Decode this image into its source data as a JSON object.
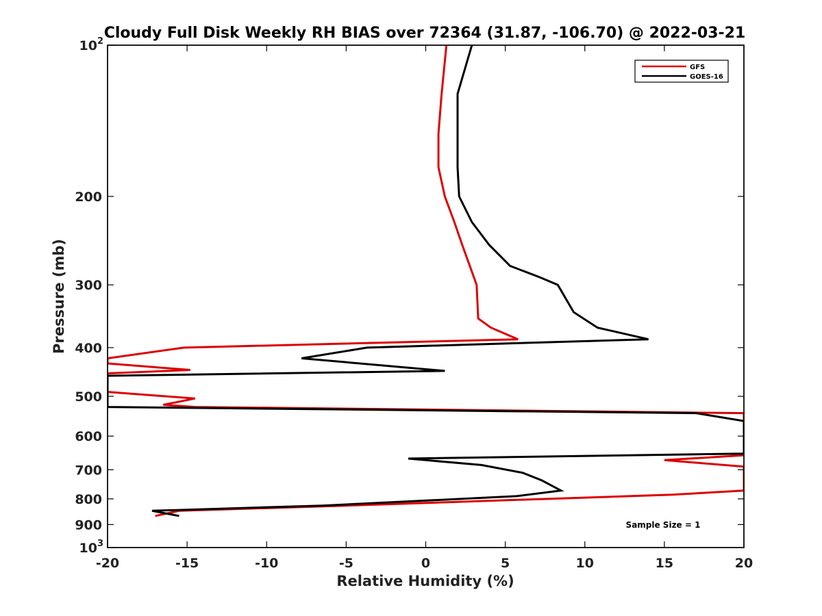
{
  "chart_data": {
    "type": "line",
    "title": "Cloudy Full Disk Weekly RH BIAS over 72364 (31.87, -106.70) @ 2022-03-21",
    "xlabel": "Relative Humidity (%)",
    "ylabel": "Pressure (mb)",
    "xlim": [
      -20,
      20
    ],
    "ylim": [
      100,
      1000
    ],
    "y_scale": "log",
    "y_reversed": true,
    "x_ticks": [
      -20,
      -15,
      -10,
      -5,
      0,
      5,
      10,
      15,
      20
    ],
    "x_tick_labels": [
      "-20",
      "-15",
      "-10",
      "-5",
      "0",
      "5",
      "10",
      "15",
      "20"
    ],
    "y_ticks": [
      100,
      200,
      300,
      400,
      500,
      600,
      700,
      800,
      900,
      1000
    ],
    "y_tick_labels": [
      {
        "base": "10",
        "exp": "2"
      },
      {
        "base": "200",
        "exp": ""
      },
      {
        "base": "300",
        "exp": ""
      },
      {
        "base": "400",
        "exp": ""
      },
      {
        "base": "500",
        "exp": ""
      },
      {
        "base": "600",
        "exp": ""
      },
      {
        "base": "700",
        "exp": ""
      },
      {
        "base": "800",
        "exp": ""
      },
      {
        "base": "900",
        "exp": ""
      },
      {
        "base": "10",
        "exp": "3"
      }
    ],
    "grid": false,
    "legend_position": "top-right",
    "annotation": "Sample Size = 1",
    "series": [
      {
        "name": "GFS",
        "color": "#dd0000",
        "points": [
          [
            1.3,
            100
          ],
          [
            1.0,
            125
          ],
          [
            0.8,
            150
          ],
          [
            0.8,
            175
          ],
          [
            1.2,
            200
          ],
          [
            1.8,
            225
          ],
          [
            2.3,
            250
          ],
          [
            3.2,
            300
          ],
          [
            3.3,
            350
          ],
          [
            4.1,
            365
          ],
          [
            5.8,
            385
          ],
          [
            -15.2,
            400
          ],
          [
            -20.0,
            420
          ],
          [
            -20.0,
            430
          ],
          [
            -14.8,
            443
          ],
          [
            -20.0,
            450
          ],
          [
            -20.0,
            490
          ],
          [
            -14.5,
            505
          ],
          [
            -16.5,
            520
          ],
          [
            -14.5,
            525
          ],
          [
            20.0,
            540
          ],
          [
            20.0,
            590
          ],
          [
            20.0,
            655
          ],
          [
            15.0,
            670
          ],
          [
            20.0,
            690
          ],
          [
            20.0,
            770
          ],
          [
            15.5,
            785
          ],
          [
            5.0,
            805
          ],
          [
            -5.0,
            825
          ],
          [
            -15.5,
            845
          ],
          [
            -17.0,
            865
          ]
        ]
      },
      {
        "name": "GOES-16",
        "color": "#000000",
        "points": [
          [
            2.9,
            100
          ],
          [
            2.0,
            125
          ],
          [
            2.0,
            150
          ],
          [
            2.0,
            175
          ],
          [
            2.1,
            200
          ],
          [
            2.9,
            225
          ],
          [
            4.0,
            250
          ],
          [
            5.3,
            275
          ],
          [
            7.2,
            290
          ],
          [
            8.3,
            300
          ],
          [
            9.3,
            340
          ],
          [
            10.8,
            365
          ],
          [
            14.0,
            385
          ],
          [
            -3.7,
            400
          ],
          [
            -7.8,
            420
          ],
          [
            1.2,
            445
          ],
          [
            -20.0,
            455
          ],
          [
            -20.0,
            490
          ],
          [
            -20.0,
            525
          ],
          [
            17.0,
            540
          ],
          [
            20.0,
            560
          ],
          [
            20.0,
            590
          ],
          [
            20.0,
            650
          ],
          [
            -1.1,
            665
          ],
          [
            3.5,
            685
          ],
          [
            6.1,
            710
          ],
          [
            7.3,
            735
          ],
          [
            8.5,
            770
          ],
          [
            5.7,
            790
          ],
          [
            -6.5,
            825
          ],
          [
            -17.2,
            845
          ],
          [
            -15.5,
            865
          ]
        ]
      }
    ]
  }
}
